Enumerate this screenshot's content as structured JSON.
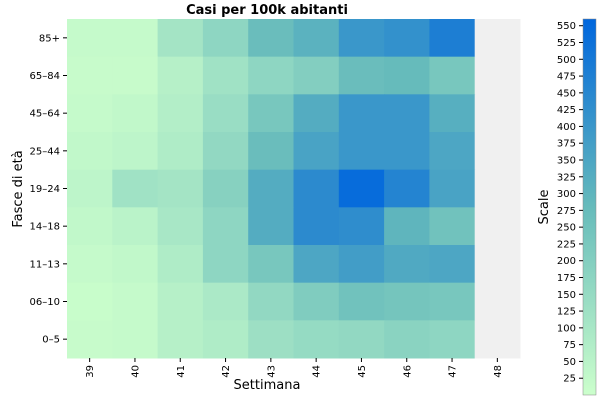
{
  "chart_data": {
    "type": "heatmap",
    "title": "Casi per 100k abitanti",
    "xlabel": "Settimana",
    "ylabel": "Fasce di età",
    "x_categories": [
      "39",
      "40",
      "41",
      "42",
      "43",
      "44",
      "45",
      "46",
      "47",
      "48"
    ],
    "y_categories": [
      "85+",
      "65–84",
      "45–64",
      "25–44",
      "19–24",
      "14–18",
      "11–13",
      "06–10",
      "0–5"
    ],
    "values": [
      [
        20,
        20,
        110,
        170,
        270,
        310,
        400,
        420,
        480,
        null
      ],
      [
        15,
        15,
        60,
        120,
        170,
        200,
        270,
        280,
        230,
        null
      ],
      [
        20,
        30,
        70,
        140,
        230,
        330,
        400,
        400,
        320,
        null
      ],
      [
        30,
        40,
        80,
        160,
        270,
        360,
        400,
        400,
        350,
        null
      ],
      [
        40,
        120,
        110,
        190,
        330,
        440,
        540,
        460,
        360,
        null
      ],
      [
        30,
        50,
        100,
        170,
        330,
        440,
        430,
        300,
        250,
        null
      ],
      [
        20,
        30,
        80,
        170,
        230,
        350,
        380,
        340,
        350,
        null
      ],
      [
        10,
        20,
        60,
        90,
        160,
        210,
        250,
        240,
        230,
        null
      ],
      [
        15,
        20,
        60,
        80,
        130,
        150,
        160,
        180,
        170,
        null
      ]
    ],
    "colorbar": {
      "label": "Scale",
      "min": 0,
      "max": 560,
      "ticks": [
        25,
        50,
        75,
        100,
        125,
        150,
        175,
        200,
        225,
        250,
        275,
        300,
        325,
        350,
        375,
        400,
        425,
        450,
        475,
        500,
        525,
        550
      ],
      "colors": [
        "#ccffcc",
        "#66bbbb",
        "#0066dd"
      ],
      "missing_color": "#f0f0f0"
    }
  }
}
